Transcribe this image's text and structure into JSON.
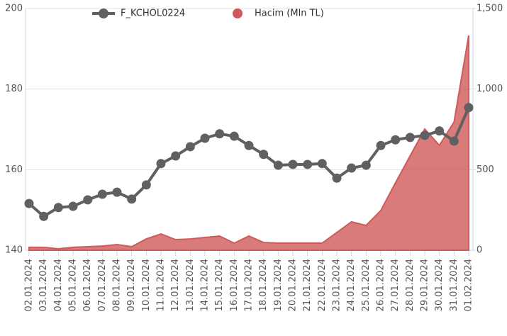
{
  "chart_data": {
    "type": "combo",
    "categories": [
      "02.01.2024",
      "03.01.2024",
      "04.01.2024",
      "05.01.2024",
      "06.01.2024",
      "07.01.2024",
      "08.01.2024",
      "09.01.2024",
      "10.01.2024",
      "11.01.2024",
      "12.01.2024",
      "13.01.2024",
      "14.01.2024",
      "15.01.2024",
      "16.01.2024",
      "17.01.2024",
      "18.01.2024",
      "19.01.2024",
      "20.01.2024",
      "21.01.2024",
      "22.01.2024",
      "23.01.2024",
      "24.01.2024",
      "25.01.2024",
      "26.01.2024",
      "27.01.2024",
      "28.01.2024",
      "29.01.2024",
      "30.01.2024",
      "31.01.2024",
      "01.02.2024"
    ],
    "series": [
      {
        "name": "F_KCHOL0224",
        "type": "line",
        "color": "#5f6062",
        "values": [
          151.6,
          148.4,
          150.6,
          150.9,
          152.5,
          153.9,
          154.4,
          152.7,
          156.2,
          161.5,
          163.4,
          165.7,
          167.8,
          168.9,
          168.3,
          166.0,
          163.8,
          161.1,
          161.3,
          161.3,
          161.5,
          157.9,
          160.4,
          161.1,
          166.0,
          167.4,
          168.0,
          168.5,
          169.6,
          167.1,
          175.4
        ]
      },
      {
        "name": "Hacim (Mln TL)",
        "type": "area",
        "axis": "y2",
        "color": "#d05a5a",
        "values": [
          18,
          18,
          9,
          18,
          22,
          26,
          35,
          22,
          70,
          101,
          66,
          70,
          79,
          88,
          44,
          88,
          48,
          44,
          44,
          44,
          44,
          110,
          176,
          154,
          246,
          418,
          585,
          752,
          651,
          796,
          1333
        ]
      }
    ],
    "ylim": [
      140,
      200
    ],
    "yticks": [
      140,
      160,
      180,
      200
    ],
    "y2lim": [
      0,
      1500
    ],
    "y2ticks": [
      0,
      {
        "value": 500,
        "label": "500"
      },
      {
        "value": 1000,
        "label": "1,000"
      },
      {
        "value": 1500,
        "label": "1,500"
      }
    ],
    "grid": true
  }
}
